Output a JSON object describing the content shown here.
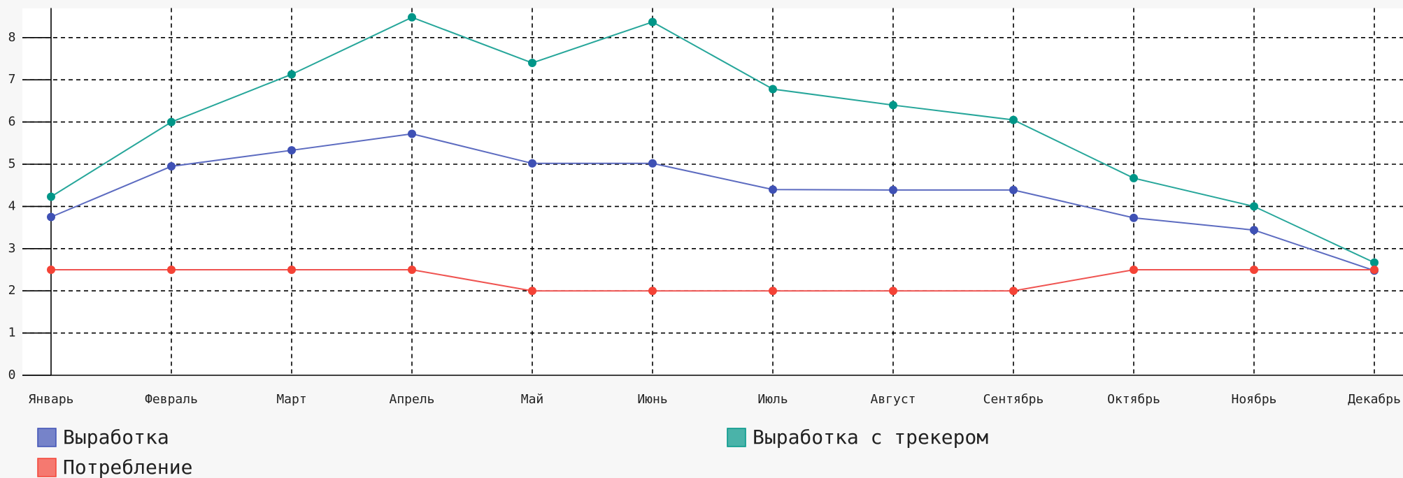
{
  "chart_data": {
    "type": "line",
    "categories": [
      "Январь",
      "Февраль",
      "Март",
      "Апрель",
      "Май",
      "Июнь",
      "Июль",
      "Август",
      "Сентябрь",
      "Октябрь",
      "Ноябрь",
      "Декабрь"
    ],
    "series": [
      {
        "name": "Выработка",
        "color": "#3f51b5",
        "values": [
          3.75,
          4.95,
          5.33,
          5.72,
          5.02,
          5.02,
          4.4,
          4.39,
          4.39,
          3.73,
          3.44,
          2.48
        ]
      },
      {
        "name": "Выработка с трекером",
        "color": "#009688",
        "values": [
          4.23,
          6.0,
          7.13,
          8.48,
          7.4,
          8.37,
          6.78,
          6.4,
          6.05,
          4.67,
          4.0,
          2.67
        ]
      },
      {
        "name": "Потребление",
        "color": "#f44336",
        "values": [
          2.5,
          2.5,
          2.5,
          2.5,
          2,
          2,
          2,
          2,
          2,
          2.5,
          2.5,
          2.5
        ]
      }
    ],
    "ylim": [
      0,
      8.7
    ],
    "yticks": [
      0,
      1,
      2,
      3,
      4,
      5,
      6,
      7,
      8
    ],
    "grid": true
  }
}
